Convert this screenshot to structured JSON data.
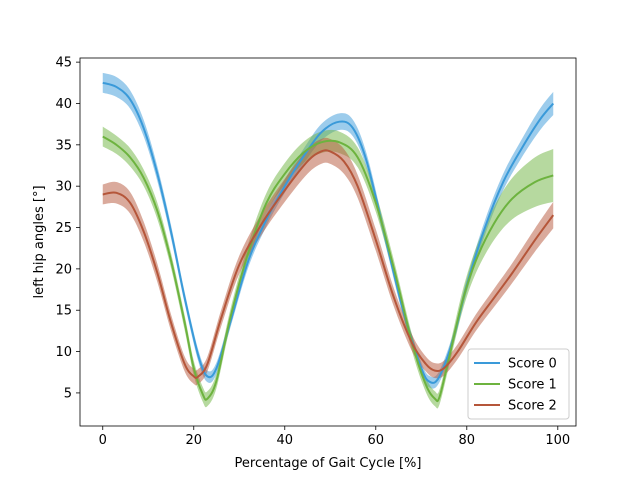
{
  "chart_data": {
    "type": "line",
    "title": "",
    "xlabel": "Percentage of Gait Cycle [%]",
    "ylabel": "left hip angles [°]",
    "xlim": [
      -5,
      104
    ],
    "ylim": [
      1,
      45.5
    ],
    "xticks": [
      0,
      20,
      40,
      60,
      80,
      100
    ],
    "yticks": [
      5,
      10,
      15,
      20,
      25,
      30,
      35,
      40,
      45
    ],
    "grid": false,
    "legend_position": "lower right",
    "series": [
      {
        "name": "Score 0",
        "color": "#3a9ad9",
        "x": [
          0,
          3,
          6,
          9,
          12,
          15,
          18,
          21,
          23,
          25,
          28,
          32,
          36,
          40,
          44,
          48,
          52,
          55,
          58,
          62,
          66,
          70,
          72,
          74,
          77,
          80,
          84,
          88,
          92,
          96,
          99
        ],
        "y": [
          42.5,
          42.0,
          40.5,
          37.0,
          31.5,
          24.5,
          16.5,
          9.5,
          7.0,
          8.0,
          13.5,
          21.0,
          26.0,
          30.0,
          33.5,
          36.5,
          37.8,
          37.0,
          33.0,
          24.0,
          15.0,
          8.0,
          6.3,
          7.0,
          11.5,
          18.0,
          25.0,
          30.5,
          34.5,
          38.0,
          40.0
        ],
        "band": [
          1.2,
          1.2,
          1.1,
          1.0,
          0.9,
          0.8,
          0.7,
          0.7,
          0.7,
          0.7,
          0.7,
          0.8,
          0.8,
          0.8,
          0.9,
          1.0,
          1.0,
          1.0,
          0.9,
          0.8,
          0.7,
          0.7,
          0.7,
          0.7,
          0.7,
          0.8,
          0.9,
          1.0,
          1.1,
          1.3,
          1.4
        ]
      },
      {
        "name": "Score 1",
        "color": "#6db33f",
        "x": [
          0,
          3,
          6,
          9,
          12,
          15,
          18,
          20,
          22,
          23,
          25,
          28,
          32,
          36,
          40,
          44,
          48,
          52,
          56,
          60,
          64,
          68,
          71,
          73,
          74,
          76,
          79,
          82,
          86,
          90,
          95,
          99
        ],
        "y": [
          36.0,
          35.0,
          33.5,
          31.0,
          27.0,
          21.0,
          13.5,
          8.0,
          4.8,
          4.3,
          6.5,
          14.0,
          22.0,
          28.0,
          31.5,
          34.0,
          35.3,
          35.3,
          33.5,
          28.0,
          20.0,
          11.0,
          6.0,
          4.3,
          4.5,
          9.0,
          16.0,
          21.0,
          25.5,
          28.5,
          30.5,
          31.3
        ],
        "band": [
          1.2,
          1.1,
          1.1,
          1.0,
          1.0,
          0.9,
          0.9,
          0.9,
          0.9,
          0.9,
          0.9,
          1.0,
          1.1,
          1.2,
          1.3,
          1.3,
          1.3,
          1.3,
          1.2,
          1.1,
          1.0,
          1.0,
          0.9,
          0.9,
          0.9,
          1.0,
          1.2,
          1.5,
          2.0,
          2.5,
          3.0,
          3.2
        ]
      },
      {
        "name": "Score 2",
        "color": "#b5563a",
        "x": [
          0,
          3,
          6,
          9,
          12,
          15,
          18,
          20,
          21,
          23,
          26,
          30,
          35,
          40,
          45,
          48,
          50,
          53,
          56,
          60,
          64,
          68,
          71,
          73,
          75,
          78,
          82,
          86,
          90,
          95,
          99
        ],
        "y": [
          29.0,
          29.2,
          28.0,
          24.5,
          19.5,
          13.5,
          8.5,
          7.0,
          7.0,
          8.5,
          14.0,
          20.5,
          25.5,
          29.5,
          33.0,
          34.2,
          34.2,
          33.0,
          30.0,
          23.5,
          16.5,
          11.0,
          8.5,
          7.7,
          8.0,
          10.0,
          13.5,
          16.5,
          19.5,
          23.5,
          26.5
        ],
        "band": [
          1.2,
          1.3,
          1.3,
          1.2,
          1.1,
          1.0,
          0.9,
          0.9,
          0.9,
          0.9,
          1.0,
          1.1,
          1.3,
          1.4,
          1.5,
          1.5,
          1.5,
          1.5,
          1.4,
          1.3,
          1.1,
          1.0,
          0.9,
          0.9,
          0.9,
          0.9,
          1.0,
          1.1,
          1.2,
          1.4,
          1.6
        ]
      }
    ]
  }
}
